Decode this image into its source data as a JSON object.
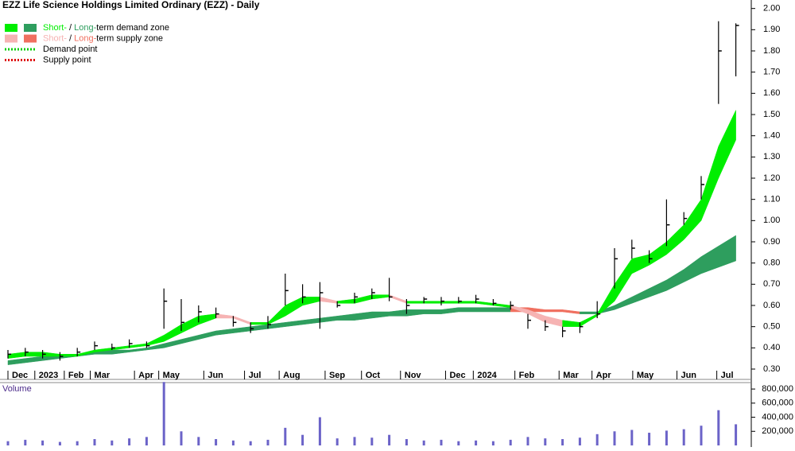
{
  "chart_data": {
    "type": "ohlc",
    "title": "EZZ Life Science Holdings Limited Ordinary (EZZ) - Daily",
    "legend": [
      {
        "parts": [
          "Short-",
          " / ",
          "Long-",
          "term demand zone"
        ],
        "colors": [
          "#00ee00",
          "#2e9e5e"
        ]
      },
      {
        "parts": [
          "Short-",
          " / ",
          "Long-",
          "term supply zone"
        ],
        "colors": [
          "#f6b3b3",
          "#f07060"
        ]
      },
      {
        "parts": [
          "Demand point"
        ],
        "colors": [
          "#00cc00"
        ]
      },
      {
        "parts": [
          "Supply point"
        ],
        "colors": [
          "#dd0000"
        ]
      }
    ],
    "x": [
      0,
      2,
      4,
      6,
      8,
      10,
      12,
      14,
      16,
      18,
      20,
      22,
      24,
      26,
      28,
      30,
      32,
      34,
      36,
      38,
      40,
      42,
      44,
      46,
      48,
      50,
      52,
      54,
      56,
      58,
      60,
      62,
      64,
      66,
      68,
      70,
      72,
      74,
      76,
      78,
      80,
      82,
      84
    ],
    "xlim": [
      0,
      86.8
    ],
    "xticks": [
      {
        "value": 0,
        "label": "Dec"
      },
      {
        "value": 3.1,
        "label": "2023"
      },
      {
        "value": 6.5,
        "label": "Feb"
      },
      {
        "value": 9.5,
        "label": "Mar"
      },
      {
        "value": 14.6,
        "label": "Apr"
      },
      {
        "value": 17.4,
        "label": "May"
      },
      {
        "value": 22.6,
        "label": "Jun"
      },
      {
        "value": 27.3,
        "label": "Jul"
      },
      {
        "value": 31.3,
        "label": "Aug"
      },
      {
        "value": 36.6,
        "label": "Sep"
      },
      {
        "value": 40.8,
        "label": "Oct"
      },
      {
        "value": 45.3,
        "label": "Nov"
      },
      {
        "value": 50.5,
        "label": "Dec"
      },
      {
        "value": 53.7,
        "label": "2024"
      },
      {
        "value": 58.5,
        "label": "Feb"
      },
      {
        "value": 63.6,
        "label": "Mar"
      },
      {
        "value": 67.4,
        "label": "Apr"
      },
      {
        "value": 72.1,
        "label": "May"
      },
      {
        "value": 77.2,
        "label": "Jun"
      },
      {
        "value": 81.8,
        "label": "Jul"
      }
    ],
    "ylim": [
      0.27,
      2.04
    ],
    "yticks": [
      {
        "value": 0.3,
        "label": "0.30"
      },
      {
        "value": 0.4,
        "label": "0.40"
      },
      {
        "value": 0.5,
        "label": "0.50"
      },
      {
        "value": 0.6,
        "label": "0.60"
      },
      {
        "value": 0.7,
        "label": "0.70"
      },
      {
        "value": 0.8,
        "label": "0.80"
      },
      {
        "value": 0.9,
        "label": "0.90"
      },
      {
        "value": 1.0,
        "label": "1.00"
      },
      {
        "value": 1.1,
        "label": "1.10"
      },
      {
        "value": 1.2,
        "label": "1.20"
      },
      {
        "value": 1.3,
        "label": "1.30"
      },
      {
        "value": 1.4,
        "label": "1.40"
      },
      {
        "value": 1.5,
        "label": "1.50"
      },
      {
        "value": 1.6,
        "label": "1.60"
      },
      {
        "value": 1.7,
        "label": "1.70"
      },
      {
        "value": 1.8,
        "label": "1.80"
      },
      {
        "value": 1.9,
        "label": "1.90"
      },
      {
        "value": 2.0,
        "label": "2.00"
      }
    ],
    "high": [
      0.39,
      0.4,
      0.39,
      0.38,
      0.4,
      0.43,
      0.42,
      0.44,
      0.43,
      0.68,
      0.63,
      0.6,
      0.59,
      0.55,
      0.52,
      0.55,
      0.75,
      0.7,
      0.71,
      0.62,
      0.66,
      0.68,
      0.73,
      0.63,
      0.64,
      0.64,
      0.64,
      0.65,
      0.63,
      0.62,
      0.56,
      0.53,
      0.5,
      0.52,
      0.62,
      0.87,
      0.91,
      0.86,
      1.1,
      1.04,
      1.21,
      1.94,
      1.93
    ],
    "low": [
      0.35,
      0.36,
      0.35,
      0.34,
      0.36,
      0.39,
      0.39,
      0.4,
      0.4,
      0.49,
      0.48,
      0.52,
      0.54,
      0.5,
      0.47,
      0.49,
      0.6,
      0.61,
      0.49,
      0.59,
      0.61,
      0.63,
      0.62,
      0.56,
      0.61,
      0.6,
      0.61,
      0.61,
      0.6,
      0.58,
      0.49,
      0.48,
      0.45,
      0.47,
      0.54,
      0.68,
      0.82,
      0.8,
      0.88,
      0.98,
      1.1,
      1.55,
      1.68
    ],
    "close": [
      0.37,
      0.38,
      0.37,
      0.36,
      0.38,
      0.41,
      0.4,
      0.42,
      0.41,
      0.62,
      0.52,
      0.57,
      0.56,
      0.52,
      0.49,
      0.51,
      0.67,
      0.64,
      0.66,
      0.6,
      0.64,
      0.66,
      0.64,
      0.6,
      0.63,
      0.62,
      0.62,
      0.63,
      0.61,
      0.6,
      0.53,
      0.5,
      0.48,
      0.5,
      0.56,
      0.82,
      0.87,
      0.82,
      0.98,
      1.01,
      1.17,
      1.8,
      1.92
    ],
    "short_zone": {
      "upper": [
        0.37,
        0.38,
        0.38,
        0.37,
        0.37,
        0.39,
        0.4,
        0.41,
        0.42,
        0.46,
        0.51,
        0.55,
        0.56,
        0.55,
        0.52,
        0.52,
        0.6,
        0.64,
        0.64,
        0.62,
        0.63,
        0.65,
        0.65,
        0.62,
        0.62,
        0.62,
        0.62,
        0.62,
        0.61,
        0.6,
        0.58,
        0.55,
        0.53,
        0.52,
        0.56,
        0.7,
        0.82,
        0.84,
        0.9,
        0.98,
        1.1,
        1.35,
        1.52
      ],
      "lower": [
        0.35,
        0.36,
        0.36,
        0.36,
        0.36,
        0.38,
        0.39,
        0.4,
        0.41,
        0.43,
        0.47,
        0.51,
        0.54,
        0.54,
        0.51,
        0.51,
        0.55,
        0.6,
        0.62,
        0.61,
        0.61,
        0.63,
        0.64,
        0.61,
        0.61,
        0.61,
        0.61,
        0.61,
        0.6,
        0.59,
        0.56,
        0.52,
        0.5,
        0.5,
        0.55,
        0.62,
        0.75,
        0.79,
        0.84,
        0.91,
        1.0,
        1.2,
        1.38
      ]
    },
    "long_zone": {
      "upper": [
        0.34,
        0.35,
        0.36,
        0.37,
        0.37,
        0.38,
        0.39,
        0.39,
        0.4,
        0.42,
        0.44,
        0.46,
        0.48,
        0.49,
        0.5,
        0.51,
        0.52,
        0.53,
        0.54,
        0.55,
        0.56,
        0.57,
        0.57,
        0.58,
        0.58,
        0.58,
        0.59,
        0.59,
        0.59,
        0.59,
        0.59,
        0.58,
        0.58,
        0.57,
        0.57,
        0.6,
        0.64,
        0.68,
        0.72,
        0.77,
        0.83,
        0.88,
        0.93
      ],
      "lower": [
        0.32,
        0.33,
        0.34,
        0.35,
        0.36,
        0.37,
        0.37,
        0.38,
        0.39,
        0.4,
        0.42,
        0.44,
        0.46,
        0.47,
        0.48,
        0.49,
        0.5,
        0.51,
        0.52,
        0.53,
        0.53,
        0.54,
        0.55,
        0.55,
        0.56,
        0.56,
        0.57,
        0.57,
        0.57,
        0.57,
        0.57,
        0.57,
        0.57,
        0.56,
        0.56,
        0.58,
        0.61,
        0.64,
        0.67,
        0.71,
        0.75,
        0.78,
        0.81
      ]
    },
    "volume_title": "Volume",
    "volume": [
      60000,
      80000,
      70000,
      50000,
      60000,
      90000,
      70000,
      100000,
      120000,
      900000,
      200000,
      120000,
      90000,
      70000,
      60000,
      80000,
      250000,
      150000,
      400000,
      100000,
      120000,
      110000,
      150000,
      90000,
      70000,
      80000,
      60000,
      70000,
      60000,
      80000,
      120000,
      100000,
      90000,
      110000,
      160000,
      200000,
      220000,
      180000,
      210000,
      230000,
      280000,
      500000,
      300000
    ],
    "volume_color": "#6b63c8",
    "vlim": [
      0,
      880000
    ],
    "vticks": [
      {
        "value": 200000,
        "label": "200,000"
      },
      {
        "value": 400000,
        "label": "400,000"
      },
      {
        "value": 600000,
        "label": "600,000"
      },
      {
        "value": 800000,
        "label": "800,000"
      }
    ]
  }
}
